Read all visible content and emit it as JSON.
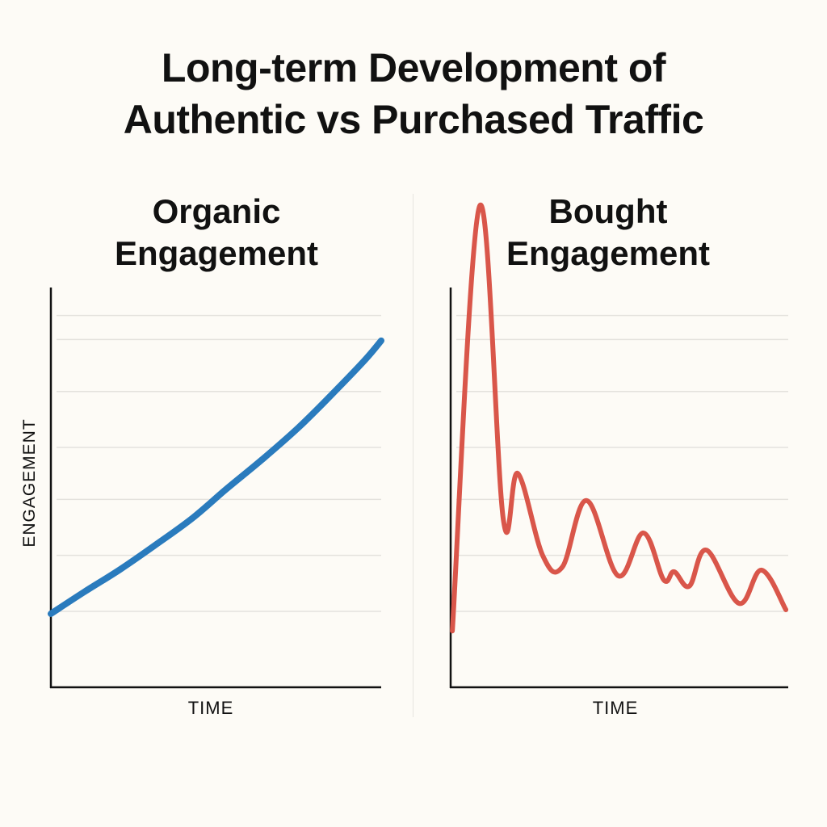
{
  "title_lines": [
    "Long-term Development of",
    "Authentic vs Purchased Traffic"
  ],
  "chart_data": [
    {
      "type": "line",
      "title_lines": [
        "Organic",
        "Engagement"
      ],
      "xlabel": "TIME",
      "ylabel": "ENGAGEMENT",
      "xlim": [
        0,
        100
      ],
      "ylim": [
        0,
        100
      ],
      "grid": true,
      "gridlines_y": [
        19,
        33,
        47,
        60,
        74,
        87,
        93
      ],
      "color": "#2a7bbd",
      "series": [
        {
          "name": "Organic Engagement",
          "x": [
            0,
            10,
            21,
            32,
            43,
            53,
            64,
            75,
            85,
            95,
            100
          ],
          "y": [
            18.4,
            23.8,
            29.5,
            35.8,
            42.4,
            49.5,
            57.0,
            65.0,
            73.2,
            81.8,
            86.7
          ]
        }
      ]
    },
    {
      "type": "line",
      "title_lines": [
        "Bought",
        "Engagement"
      ],
      "xlabel": "TIME",
      "ylabel": "",
      "xlim": [
        0,
        100
      ],
      "ylim": [
        0,
        100
      ],
      "grid": true,
      "gridlines_y": [
        19,
        33,
        47,
        60,
        74,
        87,
        93
      ],
      "color": "#d9564a",
      "series": [
        {
          "name": "Bought Engagement",
          "x": [
            0.5,
            8.6,
            15.6,
            19.9,
            27.3,
            33.1,
            40.3,
            49.6,
            57.1,
            63.1,
            66.2,
            70.7,
            75.8,
            85.4,
            92.1,
            99.3
          ],
          "y": [
            14.1,
            120.4,
            42.0,
            53.5,
            32.9,
            30.1,
            46.7,
            27.9,
            38.6,
            26.9,
            28.9,
            25.3,
            34.3,
            21.0,
            29.3,
            19.4
          ]
        }
      ]
    }
  ]
}
